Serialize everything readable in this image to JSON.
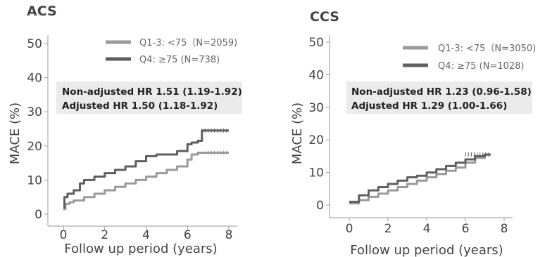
{
  "chart_data": [
    {
      "type": "line",
      "title": "ACS",
      "xlabel": "Follow up period (years)",
      "ylabel": "MACE (%)",
      "xlim": [
        -0.5,
        8.5
      ],
      "ylim": [
        0,
        52
      ],
      "xticks": [
        0,
        2,
        4,
        6,
        8
      ],
      "yticks": [
        0,
        10,
        20,
        30,
        40,
        50
      ],
      "legend_position": "top-right",
      "annotation": [
        "Non-adjusted HR 1.51 (1.19-1.92)",
        "Adjusted HR 1.50 (1.18-1.92)"
      ],
      "series": [
        {
          "name": "Q1-3: <75（N=2059)",
          "color": "#9a9a9a",
          "x": [
            0,
            0.1,
            0.3,
            0.5,
            1,
            1.5,
            2,
            2.5,
            3,
            3.5,
            4,
            4.5,
            5,
            5.5,
            6,
            6.2,
            6.5,
            6.7,
            7,
            7.3,
            7.5,
            8.0
          ],
          "y": [
            1.5,
            3,
            3.5,
            4,
            5,
            6,
            7,
            8,
            9,
            10,
            11,
            12,
            13,
            14,
            16,
            17.5,
            18,
            18,
            18,
            18,
            18,
            18
          ]
        },
        {
          "name": "Q4: ≥75 (N=738)",
          "color": "#5f5f5f",
          "x": [
            0,
            0.05,
            0.2,
            0.5,
            0.8,
            1,
            1.5,
            2,
            2.5,
            3,
            3.5,
            4,
            4.5,
            5,
            5.5,
            6,
            6.2,
            6.5,
            6.7,
            7,
            7.5,
            8.0
          ],
          "y": [
            2,
            5,
            6,
            7,
            9,
            10,
            11,
            12,
            13,
            14,
            15.5,
            17,
            17.5,
            17.5,
            18.5,
            20.5,
            21,
            21.5,
            24.5,
            24.5,
            24.5,
            24.5
          ]
        }
      ]
    },
    {
      "type": "line",
      "title": "CCS",
      "xlabel": "Follow up period (years)",
      "ylabel": "MACE (%)",
      "xlim": [
        -0.5,
        8.5
      ],
      "ylim": [
        0,
        52
      ],
      "xticks": [
        0,
        2,
        4,
        6,
        8
      ],
      "yticks": [
        0,
        10,
        20,
        30,
        40,
        50
      ],
      "legend_position": "top-right",
      "annotation": [
        "Non-adjusted HR 1.23 (0.96-1.58)",
        "Adjusted HR 1.29 (1.00-1.66)"
      ],
      "series": [
        {
          "name": "Q1-3: <75（N=3050)",
          "color": "#9a9a9a",
          "x": [
            0,
            0.5,
            1,
            1.5,
            2,
            2.5,
            3,
            3.5,
            4,
            4.5,
            5,
            5.5,
            6,
            6.5,
            7,
            7.3
          ],
          "y": [
            0.5,
            1.5,
            2.5,
            3.5,
            4.5,
            5.5,
            6.5,
            7.5,
            8.5,
            9.5,
            10.5,
            11.5,
            13,
            14.5,
            15.5,
            15.5
          ]
        },
        {
          "name": "Q4: ≥75 (N=1028)",
          "color": "#5f5f5f",
          "x": [
            0,
            0.5,
            1,
            1.5,
            2,
            2.5,
            3,
            3.5,
            4,
            4.5,
            5,
            5.5,
            6,
            6.5,
            7,
            7.3
          ],
          "y": [
            1,
            3,
            4.5,
            5.5,
            6.5,
            7.5,
            8.5,
            9,
            10,
            11,
            12,
            13,
            14,
            15,
            15.5,
            15.5
          ]
        }
      ]
    }
  ]
}
